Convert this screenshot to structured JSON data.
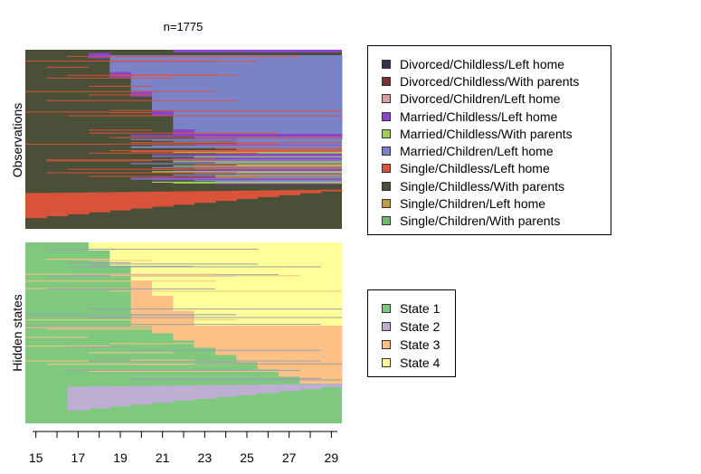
{
  "title": "n=1775",
  "chart_data": [
    {
      "type": "heatmap",
      "ylabel": "Observations",
      "x_ticks": [
        15,
        17,
        19,
        21,
        23,
        25,
        27,
        29
      ],
      "x_range": [
        15,
        30
      ],
      "legend": {
        "position": "right",
        "entries": [
          {
            "label": "Divorced/Childless/Left home",
            "color": "#3b2e4a"
          },
          {
            "label": "Divorced/Childless/With parents",
            "color": "#7a3232"
          },
          {
            "label": "Divorced/Children/Left home",
            "color": "#d4a0a0"
          },
          {
            "label": "Married/Childless/Left home",
            "color": "#8c44cc"
          },
          {
            "label": "Married/Childless/With parents",
            "color": "#9ed050"
          },
          {
            "label": "Married/Children/Left home",
            "color": "#7c82c8"
          },
          {
            "label": "Single/Childless/Left home",
            "color": "#d9533a"
          },
          {
            "label": "Single/Childless/With parents",
            "color": "#4a5038"
          },
          {
            "label": "Single/Children/Left home",
            "color": "#c49a40"
          },
          {
            "label": "Single/Children/With parents",
            "color": "#70b870"
          }
        ]
      }
    },
    {
      "type": "heatmap",
      "ylabel": "Hidden states",
      "x_ticks": [
        15,
        17,
        19,
        21,
        23,
        25,
        27,
        29
      ],
      "x_range": [
        15,
        30
      ],
      "legend": {
        "position": "right",
        "entries": [
          {
            "label": "State 1",
            "color": "#7fc97f"
          },
          {
            "label": "State 2",
            "color": "#beaed4"
          },
          {
            "label": "State 3",
            "color": "#fdc086"
          },
          {
            "label": "State 4",
            "color": "#ffff99"
          }
        ]
      }
    }
  ]
}
